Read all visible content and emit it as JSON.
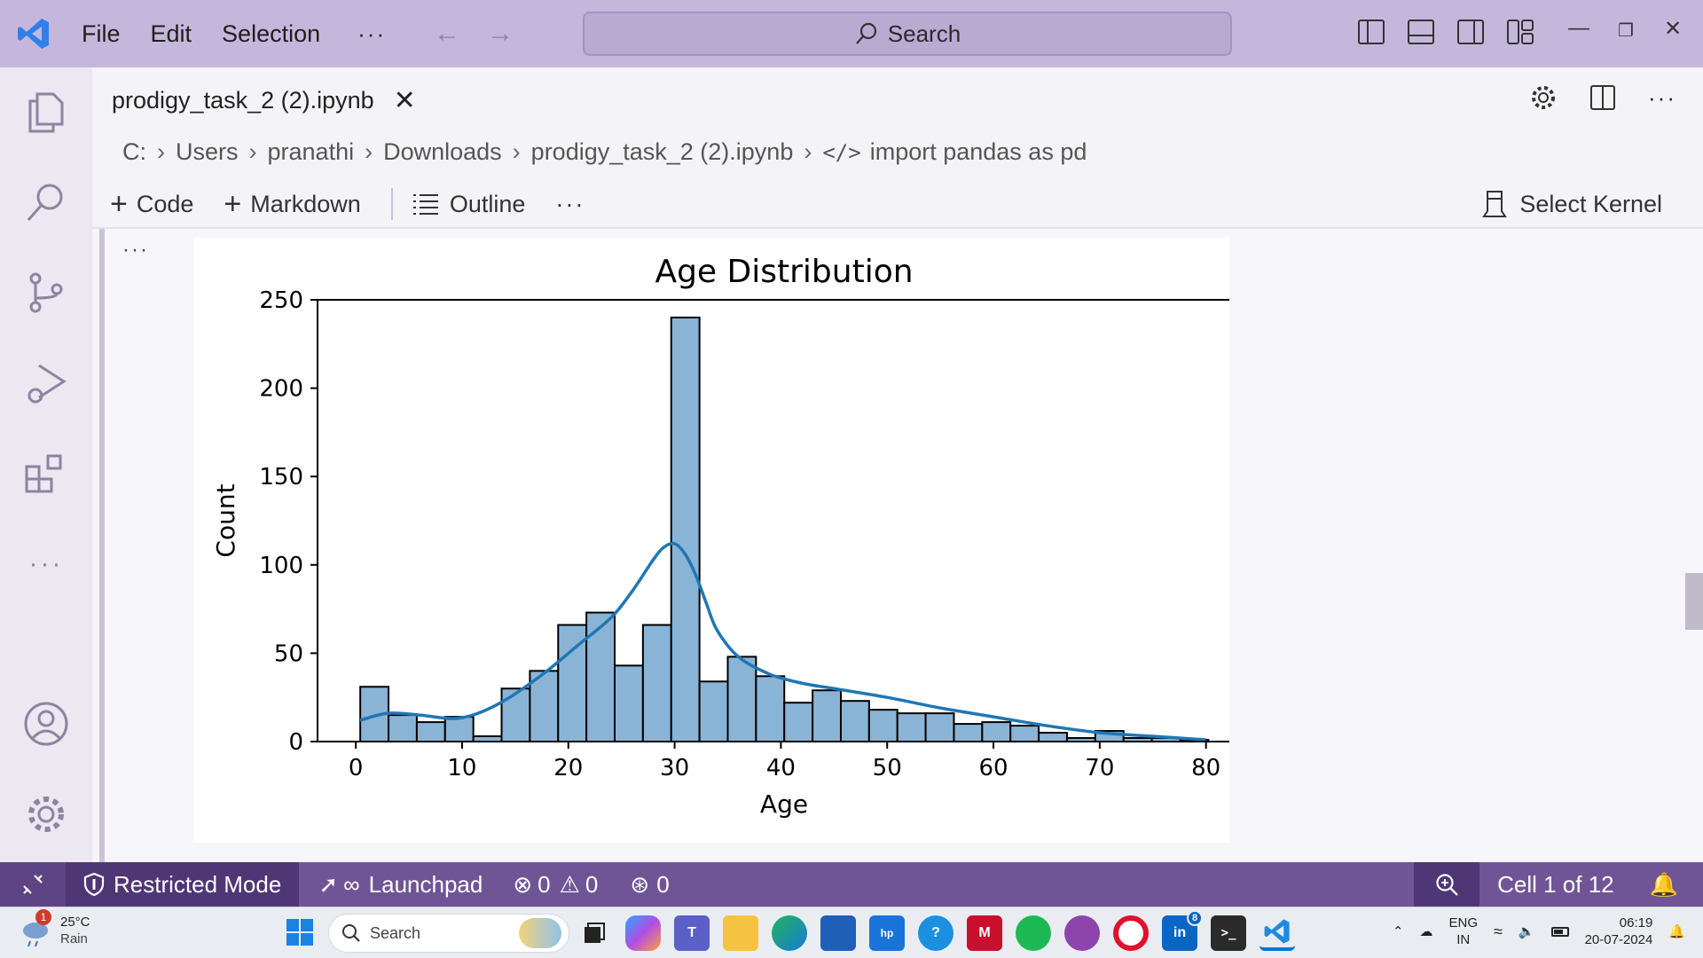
{
  "titlebar": {
    "menu": [
      "File",
      "Edit",
      "Selection"
    ],
    "more": "···",
    "search_label": "Search"
  },
  "editor": {
    "tab_title": "prodigy_task_2 (2).ipynb",
    "breadcrumb": [
      "C:",
      "Users",
      "pranathi",
      "Downloads",
      "prodigy_task_2 (2).ipynb",
      "import pandas as pd"
    ],
    "toolbar": {
      "code": "Code",
      "markdown": "Markdown",
      "outline": "Outline",
      "more": "···",
      "select_kernel": "Select Kernel"
    },
    "cell_more": "···"
  },
  "chart_data": {
    "type": "bar",
    "title": "Age Distribution",
    "xlabel": "Age",
    "ylabel": "Count",
    "xlim": [
      -3.6,
      84.2
    ],
    "ylim": [
      0,
      250
    ],
    "xticks": [
      0,
      10,
      20,
      30,
      40,
      50,
      60,
      70,
      80
    ],
    "yticks": [
      0,
      50,
      100,
      150,
      200,
      250
    ],
    "bin_width": 2.66,
    "bin_start": 0.42,
    "bar_color": "#8ab4d6",
    "kde_color": "#1f77b4",
    "counts": [
      31,
      15,
      11,
      14,
      3,
      30,
      40,
      66,
      73,
      43,
      66,
      240,
      34,
      48,
      37,
      22,
      29,
      23,
      18,
      16,
      16,
      10,
      11,
      9,
      5,
      2,
      6,
      2,
      2,
      1
    ],
    "kde": {
      "x": [
        0.4,
        3,
        6,
        9,
        11,
        13,
        15,
        18,
        21,
        24,
        26,
        28,
        29,
        30,
        31,
        32,
        33,
        34,
        36,
        39,
        42,
        45,
        50,
        55,
        60,
        65,
        70,
        75,
        80
      ],
      "y": [
        12,
        16,
        15,
        13,
        15,
        20,
        27,
        40,
        55,
        70,
        85,
        103,
        110,
        112,
        106,
        94,
        78,
        63,
        48,
        38,
        33,
        30,
        25,
        19,
        14,
        9,
        5,
        3,
        1
      ]
    }
  },
  "statusbar": {
    "restricted": "Restricted Mode",
    "launchpad": "Launchpad",
    "errors": "0",
    "warnings": "0",
    "ports": "0",
    "cell": "Cell 1 of 12"
  },
  "taskbar": {
    "weather_temp": "25°C",
    "weather_desc": "Rain",
    "weather_badge": "1",
    "search_label": "Search",
    "linkedin_badge": "8",
    "lang_top": "ENG",
    "lang_bottom": "IN",
    "time": "06:19",
    "date": "20-07-2024"
  },
  "colors": {
    "titlebar": "#c5b7dc",
    "statusbar": "#6f5596",
    "accent": "#0078d4"
  }
}
